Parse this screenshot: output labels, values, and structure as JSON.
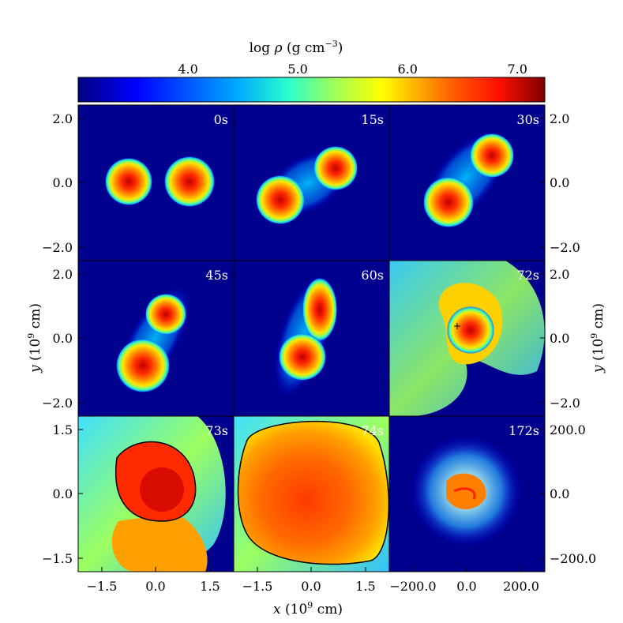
{
  "chart_data": {
    "type": "heatmap",
    "colorbar": {
      "label_html": "log ρ (g cm⁻³)",
      "label_prefix": "log ",
      "label_symbol": "ρ",
      "label_units": " (g cm",
      "label_exp": "−3",
      "label_close": ")",
      "ticks": [
        "4.0",
        "5.0",
        "6.0",
        "7.0"
      ],
      "tick_values": [
        4.0,
        5.0,
        6.0,
        7.0
      ],
      "range": [
        3.0,
        7.25
      ],
      "colormap": "jet"
    },
    "xlabel": {
      "var": "x",
      "units": " (10",
      "exp": "9",
      "close": " cm)"
    },
    "ylabel": {
      "var": "y",
      "units": " (10",
      "exp": "9",
      "close": " cm)"
    },
    "axes": {
      "row1_y_ticks": [
        "2.0",
        "0.0",
        "−2.0"
      ],
      "row2_y_ticks": [
        "2.0",
        "0.0",
        "−2.0"
      ],
      "row3_y_ticks": [
        "1.5",
        "0.0",
        "−1.5"
      ],
      "row3_right_ticks": [
        "200.0",
        "0.0",
        "−200.0"
      ],
      "col1_x_ticks": [
        "−1.5",
        "0.0",
        "1.5"
      ],
      "col2_x_ticks": [
        "−1.5",
        "0.0",
        "1.5"
      ],
      "col3_x_ticks": [
        "−200.0",
        "0.0",
        "200.0"
      ]
    },
    "panels": [
      {
        "time": "0s",
        "blobs": [
          {
            "x": -0.8,
            "y": 0.0,
            "peak": 7.0
          },
          {
            "x": 0.8,
            "y": 0.0,
            "peak": 6.8
          }
        ]
      },
      {
        "time": "15s",
        "blobs": [
          {
            "x": -0.6,
            "y": -0.5,
            "peak": 6.9
          },
          {
            "x": 0.6,
            "y": 0.4,
            "peak": 6.8
          }
        ]
      },
      {
        "time": "30s",
        "blobs": [
          {
            "x": -0.4,
            "y": -0.6,
            "peak": 6.9
          },
          {
            "x": 0.4,
            "y": 0.7,
            "peak": 6.7
          }
        ]
      },
      {
        "time": "45s",
        "blobs": [
          {
            "x": 0.2,
            "y": 0.7,
            "peak": 6.9
          },
          {
            "x": -0.4,
            "y": -0.9,
            "peak": 6.6
          }
        ]
      },
      {
        "time": "60s",
        "blobs": [
          {
            "x": -0.2,
            "y": -0.6,
            "peak": 7.0
          },
          {
            "x": 0.2,
            "y": 0.9,
            "peak": 6.4
          }
        ]
      },
      {
        "time": "72s",
        "blobs": [
          {
            "x": 0.2,
            "y": 0.3,
            "peak": 7.2
          }
        ]
      },
      {
        "time": "73s",
        "blobs": [
          {
            "x": 0.1,
            "y": 0.1,
            "peak": 7.0
          }
        ]
      },
      {
        "time": "74s",
        "blobs": [
          {
            "x": 0.0,
            "y": 0.0,
            "peak": 6.8
          }
        ]
      },
      {
        "time": "172s",
        "blobs": [
          {
            "x": 0.0,
            "y": 0.0,
            "peak": 6.5
          }
        ]
      }
    ]
  }
}
